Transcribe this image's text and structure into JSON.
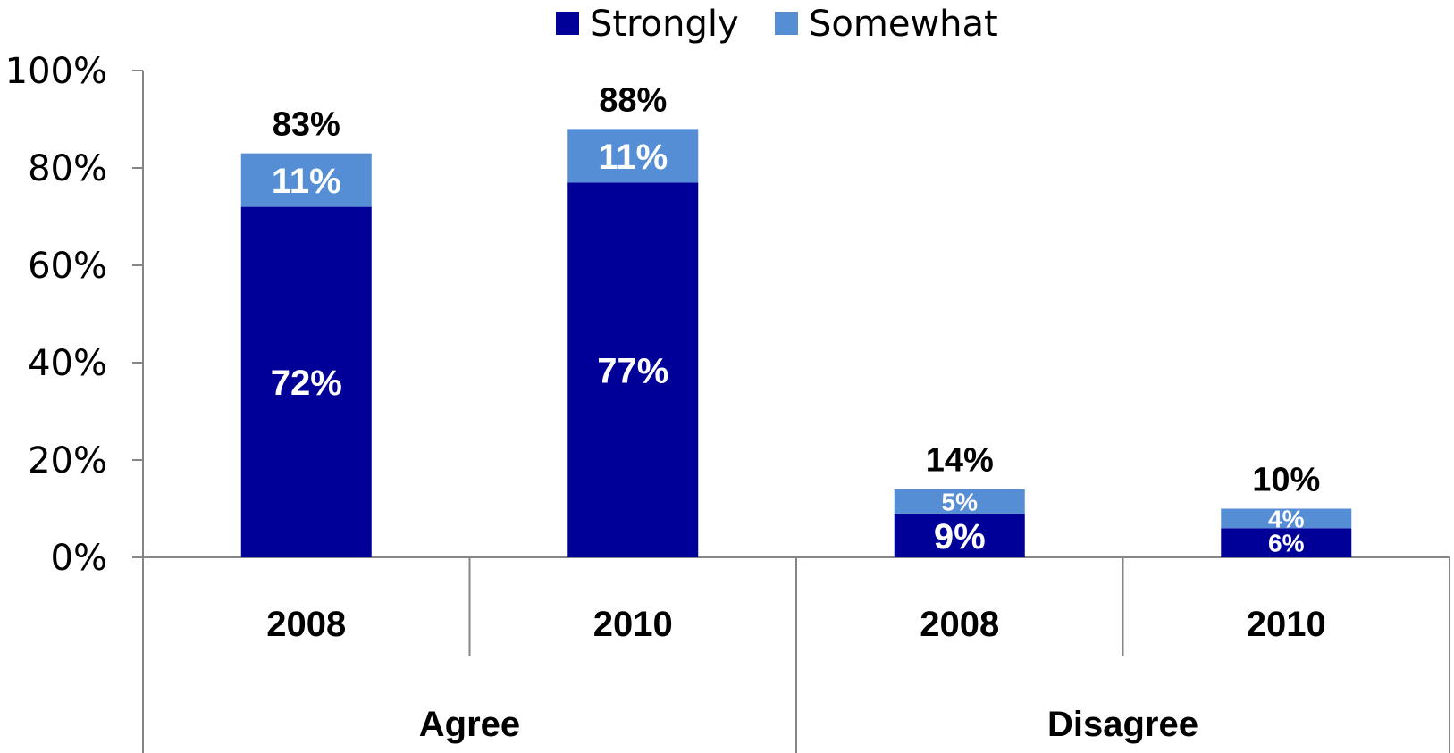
{
  "chart_data": {
    "type": "bar",
    "stacked": true,
    "title": "",
    "xlabel": "",
    "ylabel": "",
    "ylim": [
      0,
      100
    ],
    "y_ticks": [
      "0%",
      "20%",
      "40%",
      "60%",
      "80%",
      "100%"
    ],
    "y_tick_values": [
      0,
      20,
      40,
      60,
      80,
      100
    ],
    "legend": {
      "position": "top",
      "entries": [
        "Strongly",
        "Somewhat"
      ]
    },
    "groups": [
      {
        "label": "Agree",
        "categories": [
          "2008",
          "2010"
        ]
      },
      {
        "label": "Disagree",
        "categories": [
          "2008",
          "2010"
        ]
      }
    ],
    "categories": [
      "2008",
      "2010",
      "2008",
      "2010"
    ],
    "series": [
      {
        "name": "Strongly",
        "color": "#000099",
        "values": [
          72,
          77,
          9,
          6
        ],
        "labels": [
          "72%",
          "77%",
          "9%",
          "6%"
        ]
      },
      {
        "name": "Somewhat",
        "color": "#558ed5",
        "values": [
          11,
          11,
          5,
          4
        ],
        "labels": [
          "11%",
          "11%",
          "5%",
          "4%"
        ]
      }
    ],
    "totals": [
      83,
      88,
      14,
      10
    ],
    "total_labels": [
      "83%",
      "88%",
      "14%",
      "10%"
    ],
    "grid": false
  }
}
